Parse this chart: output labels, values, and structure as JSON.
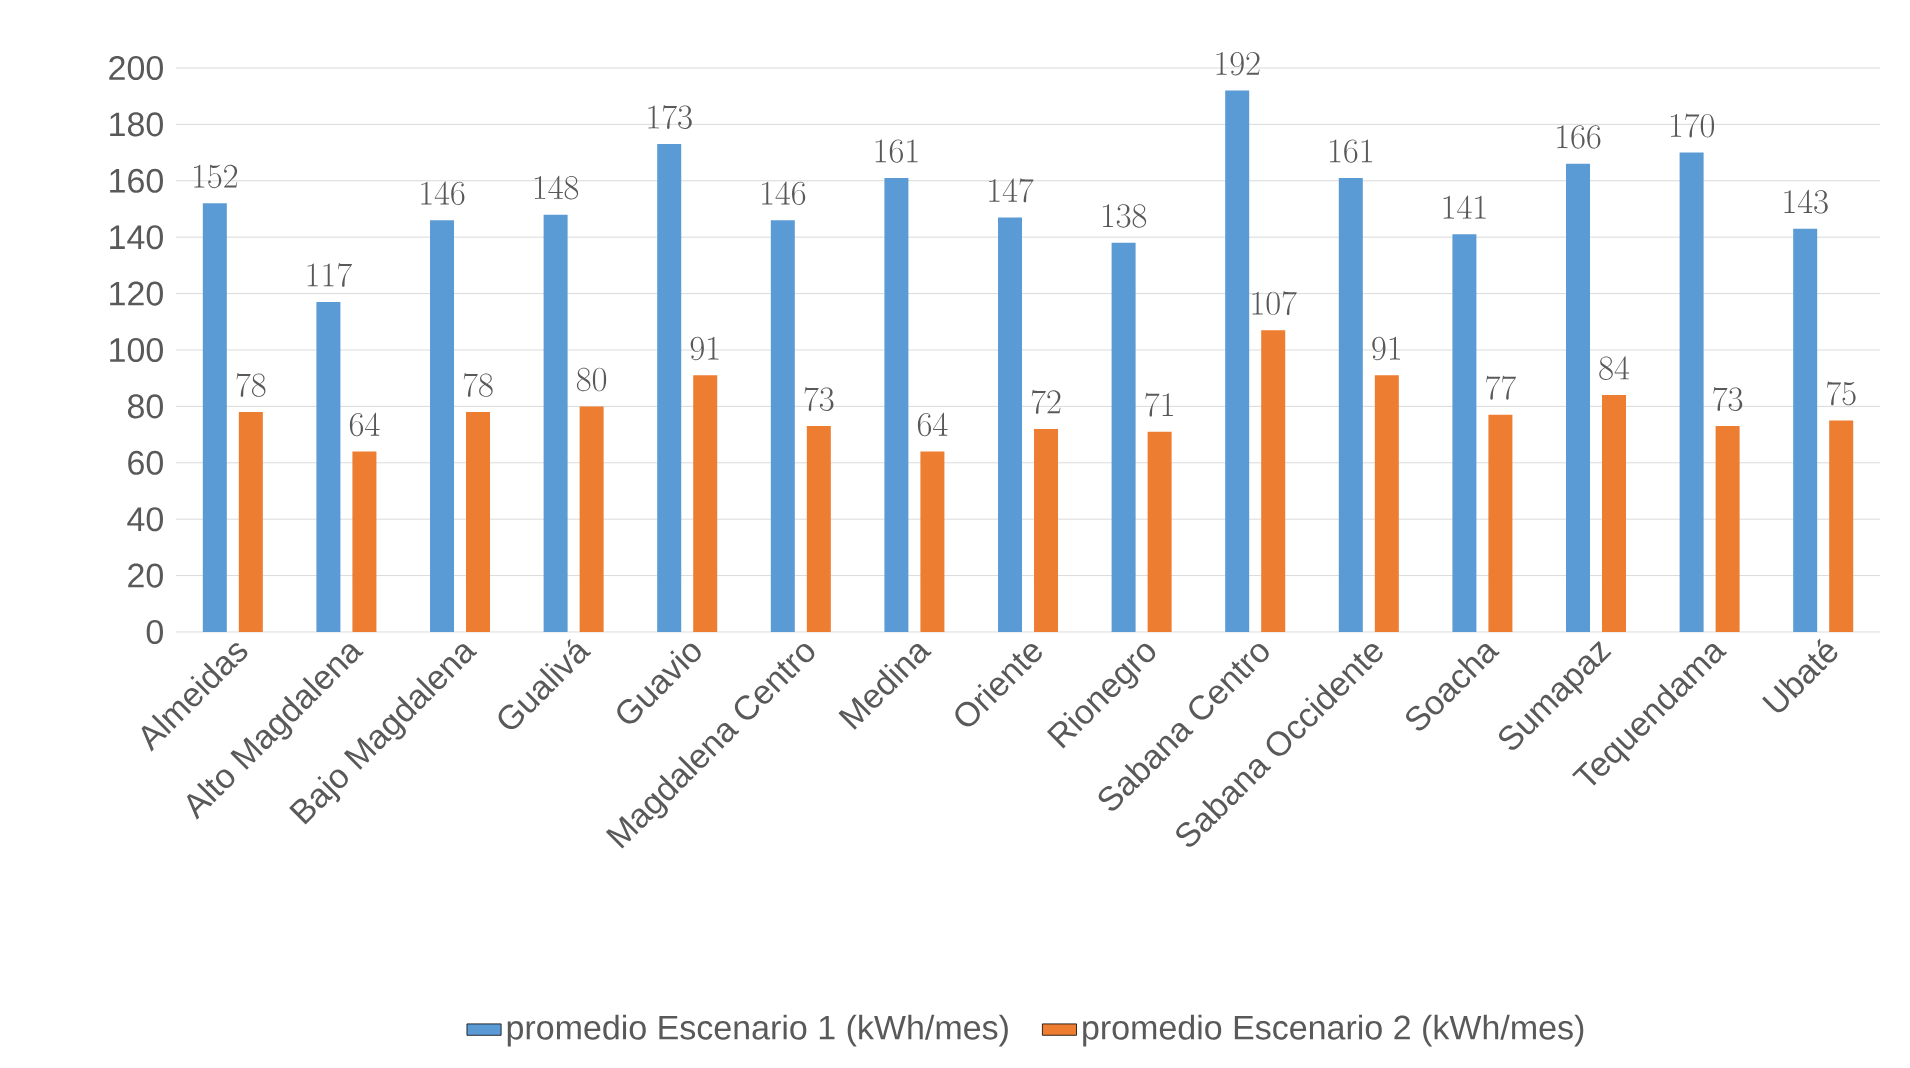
{
  "chart_data": {
    "type": "bar",
    "categories": [
      "Almeidas",
      "Alto Magdalena",
      "Bajo Magdalena",
      "Gualivá",
      "Guavio",
      "Magdalena Centro",
      "Medina",
      "Oriente",
      "Rionegro",
      "Sabana Centro",
      "Sabana Occidente",
      "Soacha",
      "Sumapaz",
      "Tequendama",
      "Ubaté"
    ],
    "series": [
      {
        "name": "promedio Escenario 1 (kWh/mes)",
        "color": "#5b9bd5",
        "values": [
          152,
          117,
          146,
          148,
          173,
          146,
          161,
          147,
          138,
          192,
          161,
          141,
          166,
          170,
          143
        ]
      },
      {
        "name": "promedio Escenario 2 (kWh/mes)",
        "color": "#ed7d31",
        "values": [
          78,
          64,
          78,
          80,
          91,
          73,
          64,
          72,
          71,
          107,
          91,
          77,
          84,
          73,
          75
        ]
      }
    ],
    "ylim": [
      0,
      200
    ],
    "yticks": [
      0,
      20,
      40,
      60,
      80,
      100,
      120,
      140,
      160,
      180,
      200
    ],
    "grid": "y",
    "legend": "bottom",
    "data_labels": true
  }
}
